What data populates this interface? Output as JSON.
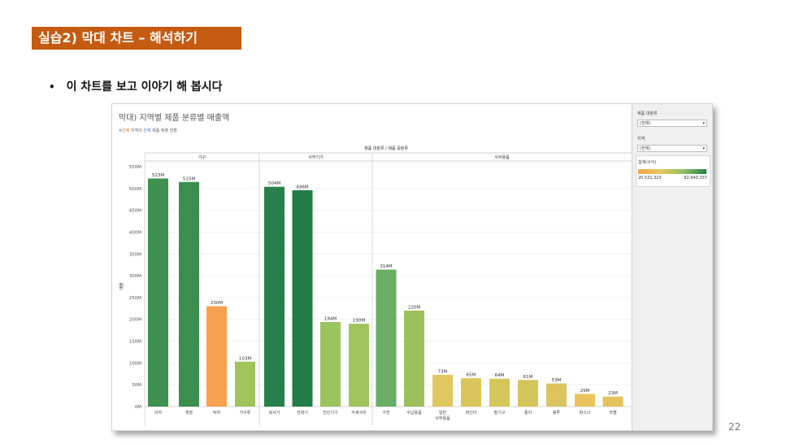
{
  "slide": {
    "title": "실습2) 막대 차트 – 해석하기",
    "bullet": "이 차트를 보고 이야기 해 봅시다",
    "page_number": "22"
  },
  "chart_header": {
    "title": "막대) 지역별 제품 분류별 매출액",
    "note_parts": [
      "※",
      "전체",
      " 지역의 ",
      "전체",
      " 제품 매출 현황"
    ],
    "column_header": "제품 대분류 / 제품 중분류"
  },
  "sidebar": {
    "filter1_label": "제품 대분류",
    "filter1_value": "(전체)",
    "filter2_label": "지역",
    "filter2_value": "(전체)",
    "legend_title": "합계(수익)",
    "legend_min": "20,531,323",
    "legend_max": "82,940,337",
    "arrow": "▾"
  },
  "chart_data": {
    "type": "bar",
    "title": "막대) 지역별 제품 분류별 매출액",
    "xlabel": "제품 대분류 / 제품 중분류",
    "ylabel": "매출",
    "ylim": [
      0,
      550
    ],
    "yticks": [
      "0M",
      "50M",
      "100M",
      "150M",
      "200M",
      "250M",
      "300M",
      "350M",
      "400M",
      "450M",
      "500M",
      "550M"
    ],
    "groups": [
      {
        "name": "가구",
        "categories": [
          "의자",
          "책장",
          "탁자",
          "가구류"
        ]
      },
      {
        "name": "사무기기",
        "categories": [
          "복사기",
          "전화기",
          "전산기기",
          "악세사리"
        ]
      },
      {
        "name": "사무용품",
        "categories": [
          "가전",
          "수납용품",
          "일반 사무용품",
          "바인더",
          "필기구",
          "종이",
          "봉투",
          "파스너",
          "라벨"
        ]
      }
    ],
    "categories": [
      "의자",
      "책장",
      "탁자",
      "가구류",
      "복사기",
      "전화기",
      "전산기기",
      "악세사리",
      "가전",
      "수납용품",
      "일반 사무용품",
      "바인더",
      "필기구",
      "종이",
      "봉투",
      "파스너",
      "라벨"
    ],
    "values": [
      523,
      515,
      230,
      103,
      504,
      496,
      194,
      190,
      314,
      220,
      73,
      65,
      64,
      61,
      53,
      29,
      23
    ],
    "labels": [
      "523M",
      "515M",
      "230M",
      "103M",
      "504M",
      "496M",
      "194M",
      "190M",
      "314M",
      "220M",
      "73M",
      "65M",
      "64M",
      "61M",
      "53M",
      "29M",
      "23M"
    ],
    "colors": [
      "#3e9150",
      "#3c8e4f",
      "#f7a04e",
      "#a1c35c",
      "#27804a",
      "#237d46",
      "#9bc360",
      "#a0c55f",
      "#6aae65",
      "#9ec05c",
      "#e1c75f",
      "#d8c65c",
      "#d6c75b",
      "#d2c65b",
      "#dcc45f",
      "#e9c45c",
      "#e5c35c"
    ]
  }
}
